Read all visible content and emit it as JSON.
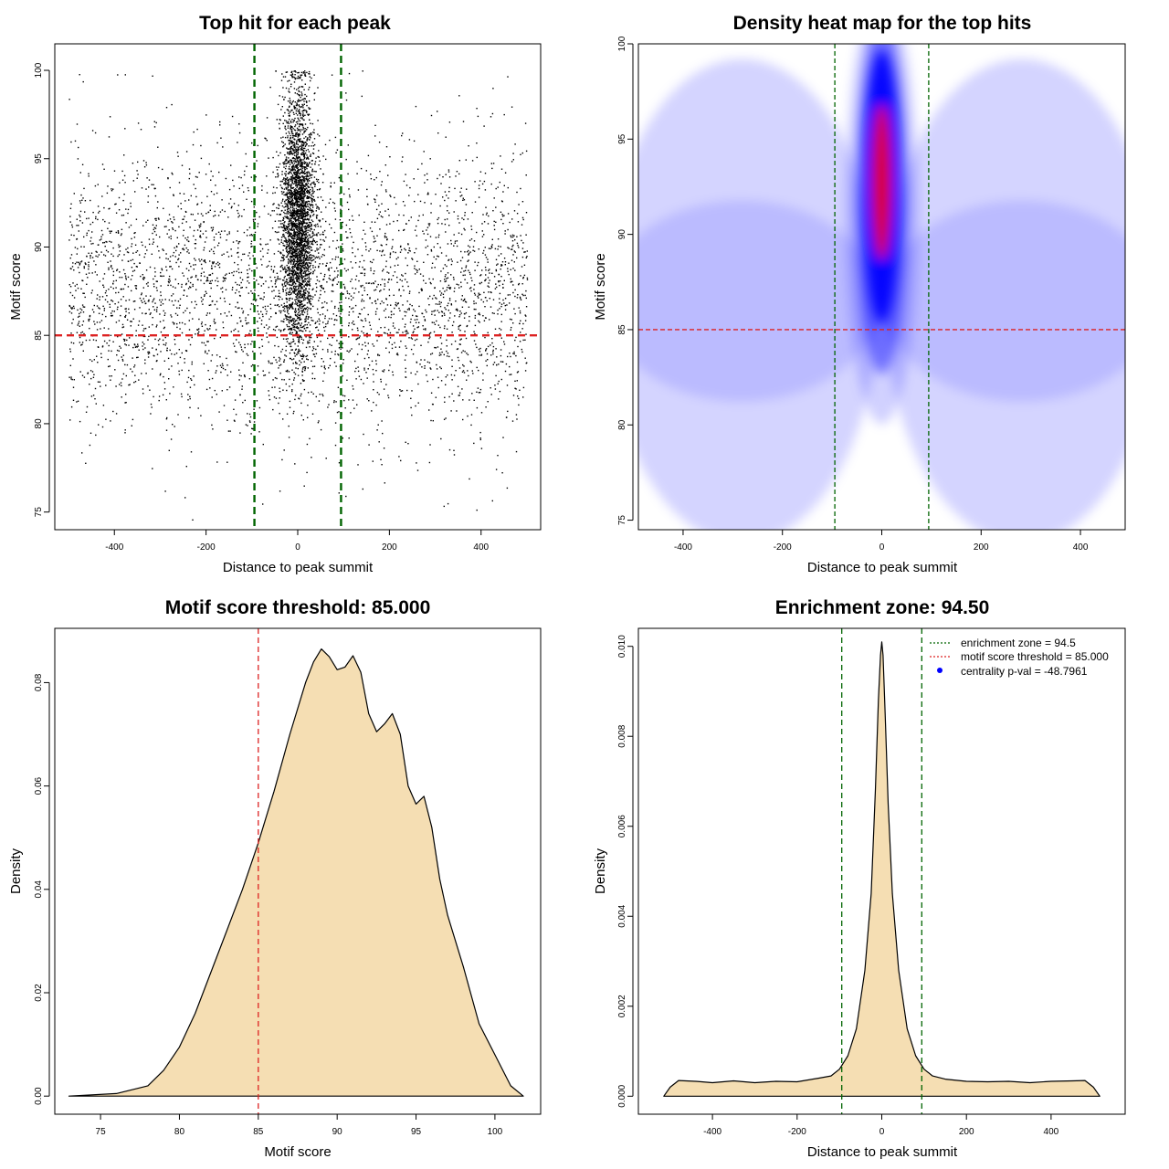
{
  "chart_data": [
    {
      "type": "scatter",
      "title": "Top hit for each peak",
      "xlabel": "Distance to peak summit",
      "ylabel": "Motif score",
      "xlim": [
        -530,
        530
      ],
      "ylim": [
        74,
        101.5
      ],
      "xticks": [
        -400,
        -200,
        0,
        200,
        400
      ],
      "yticks": [
        75,
        80,
        85,
        90,
        95,
        100
      ],
      "hlines": [
        {
          "y": 85,
          "color": "#dd2222",
          "style": "dashed"
        }
      ],
      "vlines": [
        {
          "x": -94.5,
          "color": "#006400",
          "style": "dashed"
        },
        {
          "x": 94.5,
          "color": "#006400",
          "style": "dashed"
        }
      ],
      "point_color": "#000000",
      "point_groups": [
        {
          "description": "background",
          "n": 3600,
          "x_range": [
            -500,
            500
          ],
          "y_mean": 87.5,
          "y_sd": 4.0
        },
        {
          "description": "central",
          "n": 3200,
          "x_center": 0,
          "x_sd": 18,
          "y_mean": 91.5,
          "y_sd": 3.6
        }
      ]
    },
    {
      "type": "heatmap",
      "title": "Density heat map for the top hits",
      "xlabel": "Distance to peak summit",
      "ylabel": "Motif score",
      "xlim": [
        -490,
        490
      ],
      "ylim": [
        74.5,
        100
      ],
      "xticks": [
        -400,
        -200,
        0,
        200,
        400
      ],
      "yticks": [
        75,
        80,
        85,
        90,
        95,
        100
      ],
      "hlines": [
        {
          "y": 85,
          "color": "#dd2222",
          "style": "dashed"
        }
      ],
      "vlines": [
        {
          "x": -94.5,
          "color": "#006400",
          "style": "dashed"
        },
        {
          "x": 94.5,
          "color": "#006400",
          "style": "dashed"
        }
      ],
      "colormap": [
        "#ffffff",
        "#0000ff",
        "#ff0000"
      ],
      "hotspot": {
        "x": 0,
        "y": 92.5
      }
    },
    {
      "type": "area",
      "title": "Motif score threshold: 85.000",
      "xlabel": "Motif score",
      "ylabel": "Density",
      "xlim": [
        72.1,
        102.9
      ],
      "ylim": [
        -0.0035,
        0.0905
      ],
      "xticks": [
        75,
        80,
        85,
        90,
        95,
        100
      ],
      "yticks": [
        0.0,
        0.02,
        0.04,
        0.06,
        0.08
      ],
      "ytick_labels": [
        "0.00",
        "0.02",
        "0.04",
        "0.06",
        "0.08"
      ],
      "vlines": [
        {
          "x": 85,
          "color": "#dd2222",
          "style": "dashed"
        }
      ],
      "fill": "#f5deb3",
      "x": [
        73,
        76,
        78,
        79,
        80,
        81,
        82,
        83,
        84,
        85,
        86,
        87,
        88,
        88.5,
        89,
        89.5,
        90,
        90.5,
        91,
        91.5,
        92,
        92.5,
        93,
        93.5,
        94,
        94.5,
        95,
        95.5,
        96,
        96.5,
        97,
        98,
        99,
        100,
        101,
        101.8
      ],
      "y": [
        0.0,
        0.0005,
        0.002,
        0.005,
        0.0095,
        0.016,
        0.024,
        0.032,
        0.04,
        0.049,
        0.059,
        0.07,
        0.08,
        0.084,
        0.0865,
        0.085,
        0.0825,
        0.083,
        0.0852,
        0.082,
        0.074,
        0.0705,
        0.072,
        0.074,
        0.07,
        0.06,
        0.0565,
        0.058,
        0.052,
        0.042,
        0.035,
        0.025,
        0.014,
        0.008,
        0.002,
        0.0
      ]
    },
    {
      "type": "area",
      "title": "Enrichment zone: 94.50",
      "xlabel": "Distance to peak summit",
      "ylabel": "Density",
      "xlim": [
        -575,
        575
      ],
      "ylim": [
        -0.0004,
        0.0104
      ],
      "xticks": [
        -400,
        -200,
        0,
        200,
        400
      ],
      "yticks": [
        0.0,
        0.002,
        0.004,
        0.006,
        0.008,
        0.01
      ],
      "ytick_labels": [
        "0.000",
        "0.002",
        "0.004",
        "0.006",
        "0.008",
        "0.010"
      ],
      "vlines": [
        {
          "x": -94.5,
          "color": "#006400",
          "style": "dashed"
        },
        {
          "x": 94.5,
          "color": "#006400",
          "style": "dashed"
        }
      ],
      "fill": "#f5deb3",
      "x": [
        -515,
        -500,
        -480,
        -440,
        -400,
        -350,
        -300,
        -250,
        -200,
        -150,
        -120,
        -100,
        -80,
        -60,
        -40,
        -25,
        -15,
        -8,
        -3,
        0,
        3,
        8,
        15,
        25,
        40,
        60,
        80,
        100,
        120,
        150,
        200,
        250,
        300,
        350,
        400,
        450,
        480,
        500,
        515
      ],
      "y": [
        0.0,
        0.0002,
        0.00035,
        0.00033,
        0.0003,
        0.00034,
        0.0003,
        0.00033,
        0.00032,
        0.0004,
        0.00045,
        0.0006,
        0.0009,
        0.0015,
        0.0028,
        0.0045,
        0.0068,
        0.0088,
        0.0098,
        0.0101,
        0.0098,
        0.0085,
        0.0065,
        0.0045,
        0.0028,
        0.0015,
        0.0009,
        0.0006,
        0.00045,
        0.00038,
        0.00033,
        0.00032,
        0.00033,
        0.0003,
        0.00033,
        0.00034,
        0.00035,
        0.0002,
        0.0
      ],
      "legend": {
        "position": "top-right",
        "entries": [
          {
            "label": "enrichment zone = 94.5",
            "color": "#006400",
            "kind": "dotted-line"
          },
          {
            "label": "motif score threshold = 85.000",
            "color": "#dd2222",
            "kind": "dotted-line"
          },
          {
            "label": "centrality p-val = -48.7961",
            "color": "#0000ff",
            "kind": "point"
          }
        ]
      }
    }
  ]
}
